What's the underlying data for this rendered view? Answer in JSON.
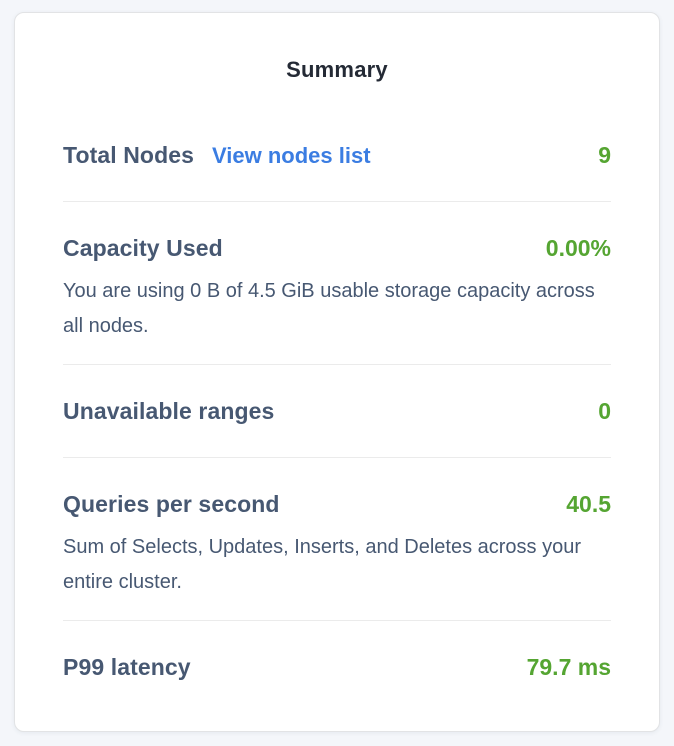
{
  "panel": {
    "title": "Summary"
  },
  "rows": [
    {
      "label": "Total Nodes",
      "link": "View nodes list",
      "value": "9"
    },
    {
      "label": "Capacity Used",
      "value": "0.00%",
      "description": "You are using 0 B of 4.5 GiB usable storage capacity across all nodes."
    },
    {
      "label": "Unavailable ranges",
      "value": "0"
    },
    {
      "label": "Queries per second",
      "value": "40.5",
      "description": "Sum of Selects, Updates, Inserts, and Deletes across your entire cluster."
    },
    {
      "label": "P99 latency",
      "value": "79.7 ms"
    }
  ],
  "colors": {
    "value_green": "#55a532",
    "link_blue": "#3b7de2",
    "label_slate": "#475872",
    "title_dark": "#242a35",
    "page_background": "#f4f6fa",
    "card_background": "#ffffff",
    "divider": "#ebebeb"
  }
}
